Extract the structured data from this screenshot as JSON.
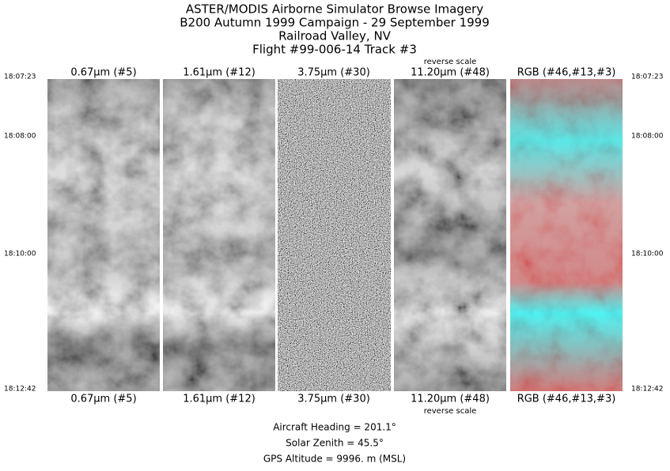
{
  "header": {
    "lines": [
      "ASTER/MODIS Airborne Simulator Browse Imagery",
      "B200 Autumn 1999 Campaign - 29 September 1999",
      "Railroad Valley, NV",
      "Flight #99-006-14 Track #3"
    ]
  },
  "times": [
    "18:07:23",
    "18:08:00",
    "18:10:00",
    "18:12:42"
  ],
  "panels": [
    {
      "label": "0.67μm (#5)"
    },
    {
      "label": "1.61μm (#12)"
    },
    {
      "label": "3.75μm (#30)"
    },
    {
      "label": "11.20μm (#48)",
      "note": "reverse scale"
    },
    {
      "label": "RGB (#46,#13,#3)"
    }
  ],
  "footer": {
    "lines": [
      "Aircraft Heading =  201.1°",
      "Solar Zenith =   45.5°",
      "GPS Altitude =   9996. m (MSL)"
    ]
  }
}
